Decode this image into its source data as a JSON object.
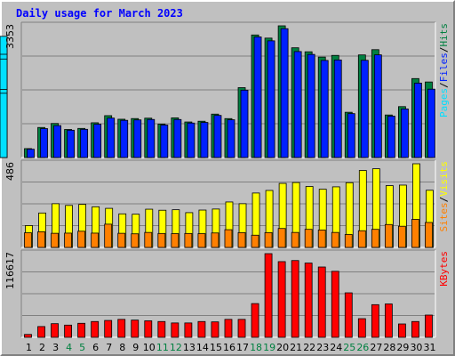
{
  "chart_data": {
    "type": "bar",
    "title": "Daily usage for March 2023",
    "categories": [
      "1",
      "2",
      "3",
      "4",
      "5",
      "6",
      "7",
      "8",
      "9",
      "10",
      "11",
      "12",
      "13",
      "14",
      "15",
      "16",
      "17",
      "18",
      "19",
      "20",
      "21",
      "22",
      "23",
      "24",
      "25",
      "26",
      "27",
      "28",
      "29",
      "30",
      "31"
    ],
    "weekend_days": [
      4,
      5,
      11,
      12,
      18,
      19,
      25,
      26
    ],
    "colors": {
      "hits": "#008040",
      "files": "#0020ff",
      "pages": "#00e0ff",
      "visits": "#ffff00",
      "sites": "#ff8000",
      "kbytes": "#ff0000",
      "weekday_label": "#000000",
      "weekend_label": "#008040",
      "title": "#0000ff"
    },
    "panels": [
      {
        "name": "hits-files-pages",
        "max_label": "3353",
        "ylim": [
          0,
          3353
        ],
        "gridlines": 3,
        "legend": [
          {
            "text": "Hits",
            "color": "#008040"
          },
          {
            "text": "Files",
            "color": "#0020ff"
          },
          {
            "text": "Pages",
            "color": "#00e0ff"
          }
        ],
        "series": [
          {
            "name": "Hits",
            "color": "#008040",
            "values": [
              227,
              765,
              867,
              714,
              741,
              885,
              1066,
              975,
              992,
              1002,
              852,
              1010,
              905,
              924,
              1105,
              991,
              1779,
              3120,
              3040,
              3353,
              2794,
              2692,
              2557,
              2600,
              1152,
              2612,
              2746,
              1083,
              1296,
              2010,
              1923
            ]
          },
          {
            "name": "Files",
            "color": "#0020ff",
            "values": [
              212,
              736,
              813,
              695,
              718,
              848,
              1004,
              947,
              958,
              969,
              827,
              968,
              878,
              893,
              1072,
              962,
              1715,
              3070,
              2971,
              3280,
              2698,
              2625,
              2472,
              2484,
              1118,
              2475,
              2614,
              1054,
              1237,
              1895,
              1740
            ]
          },
          {
            "name": "Pages",
            "color": "#00e0ff",
            "values": [
              170,
              618,
              747,
              650,
              636,
              761,
              785,
              903,
              878,
              880,
              774,
              896,
              801,
              795,
              915,
              940,
              1604,
              2964,
              2850,
              3085,
              2628,
              2454,
              2355,
              2327,
              1058,
              2327,
              2508,
              988,
              1182,
              1735,
              1636
            ]
          }
        ]
      },
      {
        "name": "visits-sites",
        "max_label": "486",
        "ylim": [
          0,
          486
        ],
        "gridlines": 3,
        "legend": [
          {
            "text": "Visits",
            "color": "#ffff00"
          },
          {
            "text": "Sites",
            "color": "#ff8000"
          }
        ],
        "series": [
          {
            "name": "Visits",
            "color": "#ffff00",
            "values": [
              127,
              200,
              254,
              244,
              250,
              236,
              227,
              195,
              193,
              222,
              216,
              219,
              202,
              217,
              223,
              264,
              254,
              316,
              331,
              372,
              377,
              354,
              338,
              352,
              376,
              447,
              457,
              359,
              362,
              486,
              332
            ]
          },
          {
            "name": "Sites",
            "color": "#ff8000",
            "values": [
              85,
              91,
              82,
              83,
              94,
              83,
              135,
              82,
              79,
              87,
              81,
              80,
              81,
              80,
              84,
              103,
              86,
              71,
              86,
              110,
              87,
              105,
              101,
              87,
              75,
              97,
              105,
              133,
              123,
              163,
              145
            ]
          }
        ]
      },
      {
        "name": "kbytes",
        "max_label": "116617",
        "ylim": [
          0,
          116617
        ],
        "gridlines": 3,
        "legend": [
          {
            "text": "KBytes",
            "color": "#ff0000"
          }
        ],
        "series": [
          {
            "name": "KBytes",
            "color": "#ff0000",
            "values": [
              4000,
              15000,
              19000,
              17000,
              19500,
              22000,
              23500,
              25000,
              24000,
              23000,
              22000,
              20000,
              20000,
              22000,
              21500,
              25000,
              25000,
              47000,
              116617,
              105500,
              107000,
              103500,
              98000,
              92000,
              62000,
              26000,
              45500,
              46500,
              18600,
              22000,
              31000
            ]
          }
        ]
      }
    ]
  }
}
